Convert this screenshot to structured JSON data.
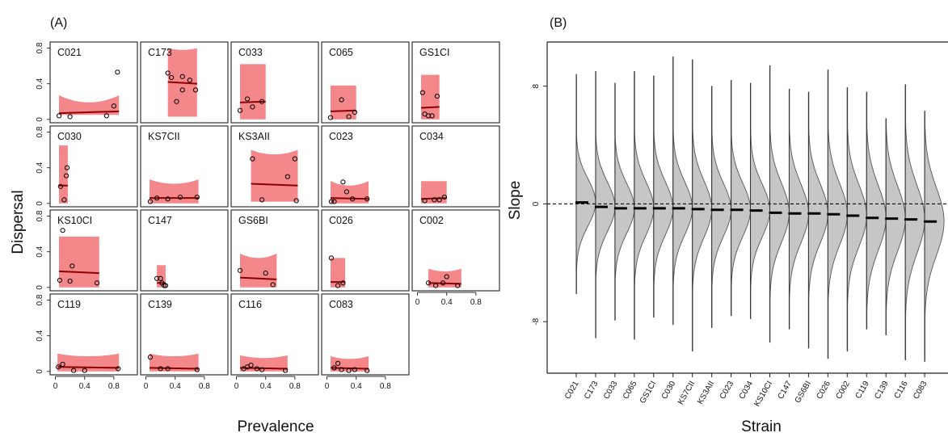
{
  "panel_labels": {
    "a": "(A)",
    "b": "(B)"
  },
  "colors": {
    "band": "#f4878a",
    "fit_line": "#8b0000",
    "violin_fill": "#c6c6c6",
    "violin_edge": "#555555",
    "median": "#000000",
    "zero_line": "#000000"
  },
  "chart_data": [
    {
      "type": "scatter",
      "xlabel": "Prevalence",
      "ylabel": "Dispersal",
      "x_ticks": [
        "0",
        "0.4",
        "0.8"
      ],
      "y_ticks": [
        "0",
        "0.4",
        "0.8"
      ],
      "xlim": [
        -0.05,
        1.1
      ],
      "ylim": [
        -0.02,
        0.85
      ],
      "panels": [
        {
          "label": "C021",
          "x_range": [
            0.05,
            0.87
          ],
          "band": [
            0.05,
            0.27
          ],
          "band_rise": 0.08,
          "fit": [
            0.07,
            0.09
          ],
          "points": [
            [
              0.05,
              0.04
            ],
            [
              0.2,
              0.03
            ],
            [
              0.7,
              0.04
            ],
            [
              0.8,
              0.15
            ],
            [
              0.85,
              0.53
            ]
          ]
        },
        {
          "label": "C173",
          "x_range": [
            0.3,
            0.7
          ],
          "band": [
            0.03,
            0.8
          ],
          "band_rise": 0.02,
          "fit": [
            0.42,
            0.4
          ],
          "points": [
            [
              0.3,
              0.52
            ],
            [
              0.35,
              0.47
            ],
            [
              0.42,
              0.2
            ],
            [
              0.5,
              0.48
            ],
            [
              0.5,
              0.33
            ],
            [
              0.6,
              0.44
            ],
            [
              0.68,
              0.33
            ]
          ]
        },
        {
          "label": "C033",
          "x_range": [
            0.05,
            0.4
          ],
          "band": [
            0.0,
            0.62
          ],
          "band_rise": 0.0,
          "fit": [
            0.19,
            0.2
          ],
          "points": [
            [
              0.05,
              0.1
            ],
            [
              0.15,
              0.23
            ],
            [
              0.22,
              0.14
            ],
            [
              0.35,
              0.2
            ]
          ]
        },
        {
          "label": "C065",
          "x_range": [
            0.05,
            0.4
          ],
          "band": [
            0.0,
            0.38
          ],
          "band_rise": 0.0,
          "fit": [
            0.09,
            0.1
          ],
          "points": [
            [
              0.05,
              0.02
            ],
            [
              0.2,
              0.22
            ],
            [
              0.3,
              0.03
            ],
            [
              0.38,
              0.08
            ]
          ]
        },
        {
          "label": "GS1CI",
          "x_range": [
            0.05,
            0.3
          ],
          "band": [
            0.0,
            0.5
          ],
          "band_rise": 0.0,
          "fit": [
            0.13,
            0.14
          ],
          "points": [
            [
              0.07,
              0.3
            ],
            [
              0.1,
              0.06
            ],
            [
              0.15,
              0.04
            ],
            [
              0.2,
              0.04
            ],
            [
              0.27,
              0.26
            ]
          ]
        },
        {
          "label": "C030",
          "x_range": [
            0.05,
            0.17
          ],
          "band": [
            0.0,
            0.65
          ],
          "band_rise": 0.0,
          "fit": [
            0.2,
            0.2
          ],
          "points": [
            [
              0.07,
              0.19
            ],
            [
              0.12,
              0.04
            ],
            [
              0.15,
              0.31
            ],
            [
              0.16,
              0.4
            ]
          ]
        },
        {
          "label": "KS7CII",
          "x_range": [
            0.05,
            0.72
          ],
          "band": [
            0.0,
            0.27
          ],
          "band_rise": 0.05,
          "fit": [
            0.06,
            0.06
          ],
          "points": [
            [
              0.06,
              0.02
            ],
            [
              0.15,
              0.06
            ],
            [
              0.3,
              0.05
            ],
            [
              0.47,
              0.07
            ],
            [
              0.7,
              0.07
            ]
          ]
        },
        {
          "label": "KS3AII",
          "x_range": [
            0.2,
            0.84
          ],
          "band": [
            0.02,
            0.6
          ],
          "band_rise": 0.05,
          "fit": [
            0.22,
            0.2
          ],
          "points": [
            [
              0.22,
              0.5
            ],
            [
              0.35,
              0.04
            ],
            [
              0.7,
              0.3
            ],
            [
              0.8,
              0.5
            ],
            [
              0.82,
              0.03
            ]
          ]
        },
        {
          "label": "C023",
          "x_range": [
            0.05,
            0.57
          ],
          "band": [
            0.0,
            0.25
          ],
          "band_rise": 0.05,
          "fit": [
            0.06,
            0.05
          ],
          "points": [
            [
              0.06,
              0.02
            ],
            [
              0.1,
              0.02
            ],
            [
              0.22,
              0.24
            ],
            [
              0.27,
              0.13
            ],
            [
              0.35,
              0.05
            ],
            [
              0.55,
              0.05
            ]
          ]
        },
        {
          "label": "C034",
          "x_range": [
            0.05,
            0.4
          ],
          "band": [
            0.0,
            0.25
          ],
          "band_rise": 0.0,
          "fit": [
            0.05,
            0.06
          ],
          "points": [
            [
              0.1,
              0.03
            ],
            [
              0.23,
              0.04
            ],
            [
              0.3,
              0.04
            ],
            [
              0.37,
              0.07
            ]
          ]
        },
        {
          "label": "KS10CI",
          "x_range": [
            0.05,
            0.6
          ],
          "band": [
            0.0,
            0.57
          ],
          "band_rise": 0.0,
          "fit": [
            0.18,
            0.16
          ],
          "points": [
            [
              0.1,
              0.64
            ],
            [
              0.06,
              0.08
            ],
            [
              0.2,
              0.07
            ],
            [
              0.23,
              0.24
            ],
            [
              0.57,
              0.05
            ]
          ]
        },
        {
          "label": "C147",
          "x_range": [
            0.15,
            0.27
          ],
          "band": [
            0.0,
            0.25
          ],
          "band_rise": 0.0,
          "fit": [
            0.05,
            0.05
          ],
          "points": [
            [
              0.15,
              0.1
            ],
            [
              0.2,
              0.1
            ],
            [
              0.22,
              0.05
            ],
            [
              0.25,
              0.02
            ],
            [
              0.27,
              0.02
            ]
          ]
        },
        {
          "label": "GS6BI",
          "x_range": [
            0.05,
            0.55
          ],
          "band": [
            0.0,
            0.38
          ],
          "band_rise": 0.05,
          "fit": [
            0.11,
            0.09
          ],
          "points": [
            [
              0.05,
              0.19
            ],
            [
              0.4,
              0.16
            ],
            [
              0.5,
              0.03
            ]
          ]
        },
        {
          "label": "C026",
          "x_range": [
            0.05,
            0.25
          ],
          "band": [
            0.0,
            0.33
          ],
          "band_rise": 0.0,
          "fit": [
            0.06,
            0.06
          ],
          "points": [
            [
              0.06,
              0.33
            ],
            [
              0.15,
              0.02
            ],
            [
              0.22,
              0.05
            ]
          ]
        },
        {
          "label": "C002",
          "x_range": [
            0.15,
            0.6
          ],
          "band": [
            0.0,
            0.21
          ],
          "band_rise": 0.03,
          "fit": [
            0.05,
            0.04
          ],
          "points": [
            [
              0.15,
              0.05
            ],
            [
              0.25,
              0.02
            ],
            [
              0.35,
              0.05
            ],
            [
              0.4,
              0.12
            ],
            [
              0.55,
              0.02
            ]
          ]
        },
        {
          "label": "C119",
          "x_range": [
            0.03,
            0.87
          ],
          "band": [
            0.0,
            0.2
          ],
          "band_rise": 0.03,
          "fit": [
            0.05,
            0.04
          ],
          "points": [
            [
              0.04,
              0.05
            ],
            [
              0.1,
              0.08
            ],
            [
              0.25,
              0.01
            ],
            [
              0.4,
              0.01
            ],
            [
              0.86,
              0.03
            ]
          ]
        },
        {
          "label": "C139",
          "x_range": [
            0.05,
            0.72
          ],
          "band": [
            0.0,
            0.2
          ],
          "band_rise": 0.03,
          "fit": [
            0.04,
            0.03
          ],
          "points": [
            [
              0.06,
              0.16
            ],
            [
              0.2,
              0.03
            ],
            [
              0.3,
              0.03
            ],
            [
              0.7,
              0.02
            ]
          ]
        },
        {
          "label": "C116",
          "x_range": [
            0.05,
            0.7
          ],
          "band": [
            0.0,
            0.18
          ],
          "band_rise": 0.03,
          "fit": [
            0.04,
            0.03
          ],
          "points": [
            [
              0.1,
              0.03
            ],
            [
              0.15,
              0.05
            ],
            [
              0.2,
              0.07
            ],
            [
              0.28,
              0.03
            ],
            [
              0.35,
              0.02
            ],
            [
              0.67,
              0.01
            ]
          ]
        },
        {
          "label": "C083",
          "x_range": [
            0.05,
            0.57
          ],
          "band": [
            0.0,
            0.17
          ],
          "band_rise": 0.03,
          "fit": [
            0.04,
            0.03
          ],
          "points": [
            [
              0.1,
              0.04
            ],
            [
              0.15,
              0.09
            ],
            [
              0.2,
              0.02
            ],
            [
              0.3,
              0.01
            ],
            [
              0.38,
              0.02
            ],
            [
              0.55,
              0.01
            ]
          ]
        }
      ]
    },
    {
      "type": "violin",
      "xlabel": "Strain",
      "ylabel": "Slope",
      "ylim": [
        -11.5,
        11
      ],
      "y_ticks": [
        8,
        0,
        -8
      ],
      "y_tick_labels": [
        "8",
        "0",
        "-8"
      ],
      "reference_line": 0,
      "categories": [
        "C021",
        "C173",
        "C033",
        "C065",
        "GS1CI",
        "C030",
        "KS7CII",
        "KS3AII",
        "C023",
        "C034",
        "KS10CI",
        "C147",
        "GS6BI",
        "C026",
        "C002",
        "C119",
        "C139",
        "C116",
        "C083"
      ],
      "medians": [
        0.1,
        -0.2,
        -0.3,
        -0.3,
        -0.3,
        -0.3,
        -0.35,
        -0.4,
        -0.4,
        -0.45,
        -0.6,
        -0.65,
        -0.65,
        -0.7,
        -0.8,
        -0.95,
        -1.0,
        -1.05,
        -1.2
      ],
      "tail_max": [
        8.8,
        9.0,
        8.2,
        9.0,
        8.7,
        10.0,
        9.8,
        8.0,
        8.4,
        8.2,
        9.4,
        7.8,
        7.6,
        9.1,
        7.9,
        7.6,
        5.8,
        8.1,
        6.3
      ],
      "tail_min": [
        -6.1,
        -9.1,
        -7.9,
        -9.2,
        -7.7,
        -8.2,
        -10.0,
        -8.4,
        -7.6,
        -7.8,
        -9.4,
        -8.5,
        -9.8,
        -10.5,
        -10.0,
        -8.5,
        -8.9,
        -10.6,
        -10.7
      ],
      "spread": [
        1.6,
        1.7,
        1.7,
        1.8,
        1.8,
        1.8,
        1.9,
        1.8,
        1.8,
        1.8,
        2.0,
        2.0,
        2.0,
        2.1,
        2.1,
        2.2,
        2.2,
        2.3,
        2.3
      ]
    }
  ]
}
